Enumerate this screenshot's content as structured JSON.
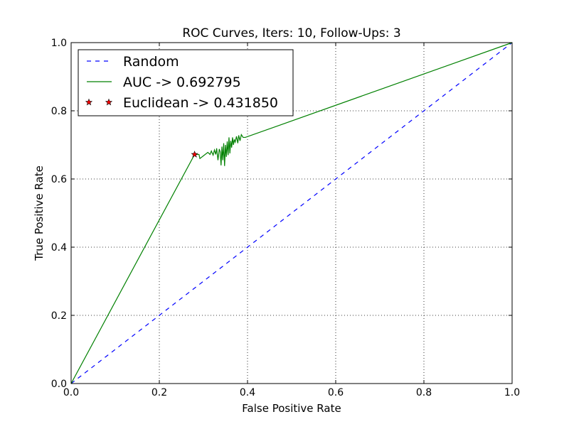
{
  "chart_data": {
    "type": "line",
    "title": "ROC Curves, Iters: 10, Follow-Ups: 3",
    "xlabel": "False Positive Rate",
    "ylabel": "True Positive Rate",
    "xlim": [
      0.0,
      1.0
    ],
    "ylim": [
      0.0,
      1.0
    ],
    "xticks": [
      "0.0",
      "0.2",
      "0.4",
      "0.6",
      "0.8",
      "1.0"
    ],
    "yticks": [
      "0.0",
      "0.2",
      "0.4",
      "0.6",
      "0.8",
      "1.0"
    ],
    "xtick_values": [
      0.0,
      0.2,
      0.4,
      0.6,
      0.8,
      1.0
    ],
    "ytick_values": [
      0.0,
      0.2,
      0.4,
      0.6,
      0.8,
      1.0
    ],
    "grid": true,
    "legend_position": "top-left",
    "series": [
      {
        "name": "Random",
        "style": "dashed",
        "color": "#0000ff",
        "x": [
          0.0,
          1.0
        ],
        "y": [
          0.0,
          1.0
        ]
      },
      {
        "name": "AUC -> 0.692795",
        "style": "solid",
        "color": "#008000",
        "x": [
          0.0,
          0.28,
          0.29,
          0.292,
          0.3,
          0.31,
          0.315,
          0.318,
          0.322,
          0.325,
          0.328,
          0.33,
          0.333,
          0.336,
          0.338,
          0.34,
          0.342,
          0.344,
          0.346,
          0.348,
          0.35,
          0.352,
          0.354,
          0.356,
          0.358,
          0.36,
          0.362,
          0.364,
          0.366,
          0.368,
          0.37,
          0.372,
          0.375,
          0.378,
          0.38,
          0.383,
          0.386,
          0.39,
          0.395,
          1.0
        ],
        "y": [
          0.0,
          0.672,
          0.672,
          0.66,
          0.668,
          0.678,
          0.672,
          0.682,
          0.67,
          0.685,
          0.672,
          0.69,
          0.655,
          0.688,
          0.68,
          0.64,
          0.695,
          0.655,
          0.705,
          0.638,
          0.7,
          0.665,
          0.71,
          0.67,
          0.722,
          0.675,
          0.712,
          0.692,
          0.722,
          0.7,
          0.716,
          0.708,
          0.725,
          0.705,
          0.728,
          0.712,
          0.73,
          0.722,
          0.722,
          1.0
        ]
      },
      {
        "name": "Euclidean -> 0.431850",
        "style": "marker",
        "color": "#ff0000",
        "marker": "star",
        "x": [
          0.28
        ],
        "y": [
          0.672
        ]
      }
    ]
  }
}
